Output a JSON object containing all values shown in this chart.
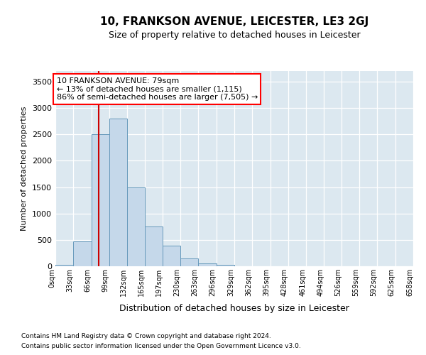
{
  "title": "10, FRANKSON AVENUE, LEICESTER, LE3 2GJ",
  "subtitle": "Size of property relative to detached houses in Leicester",
  "xlabel": "Distribution of detached houses by size in Leicester",
  "ylabel": "Number of detached properties",
  "footnote1": "Contains HM Land Registry data © Crown copyright and database right 2024.",
  "footnote2": "Contains public sector information licensed under the Open Government Licence v3.0.",
  "annotation_line1": "10 FRANKSON AVENUE: 79sqm",
  "annotation_line2": "← 13% of detached houses are smaller (1,115)",
  "annotation_line3": "86% of semi-detached houses are larger (7,505) →",
  "property_size": 79,
  "bar_color": "#c5d8ea",
  "bar_edge_color": "#6699bb",
  "redline_color": "#cc0000",
  "bg_color": "#dce8f0",
  "ylim": [
    0,
    3700
  ],
  "yticks": [
    0,
    500,
    1000,
    1500,
    2000,
    2500,
    3000,
    3500
  ],
  "bin_edges": [
    0,
    33,
    66,
    99,
    132,
    165,
    197,
    230,
    263,
    296,
    329,
    362,
    395,
    428,
    461,
    494,
    526,
    559,
    592,
    625,
    658
  ],
  "bin_labels": [
    "0sqm",
    "33sqm",
    "66sqm",
    "99sqm",
    "132sqm",
    "165sqm",
    "197sqm",
    "230sqm",
    "263sqm",
    "296sqm",
    "329sqm",
    "362sqm",
    "395sqm",
    "428sqm",
    "461sqm",
    "494sqm",
    "526sqm",
    "559sqm",
    "592sqm",
    "625sqm",
    "658sqm"
  ],
  "bar_heights": [
    30,
    470,
    2500,
    2800,
    1500,
    750,
    390,
    150,
    60,
    30,
    0,
    0,
    0,
    0,
    0,
    0,
    0,
    0,
    0,
    0
  ]
}
